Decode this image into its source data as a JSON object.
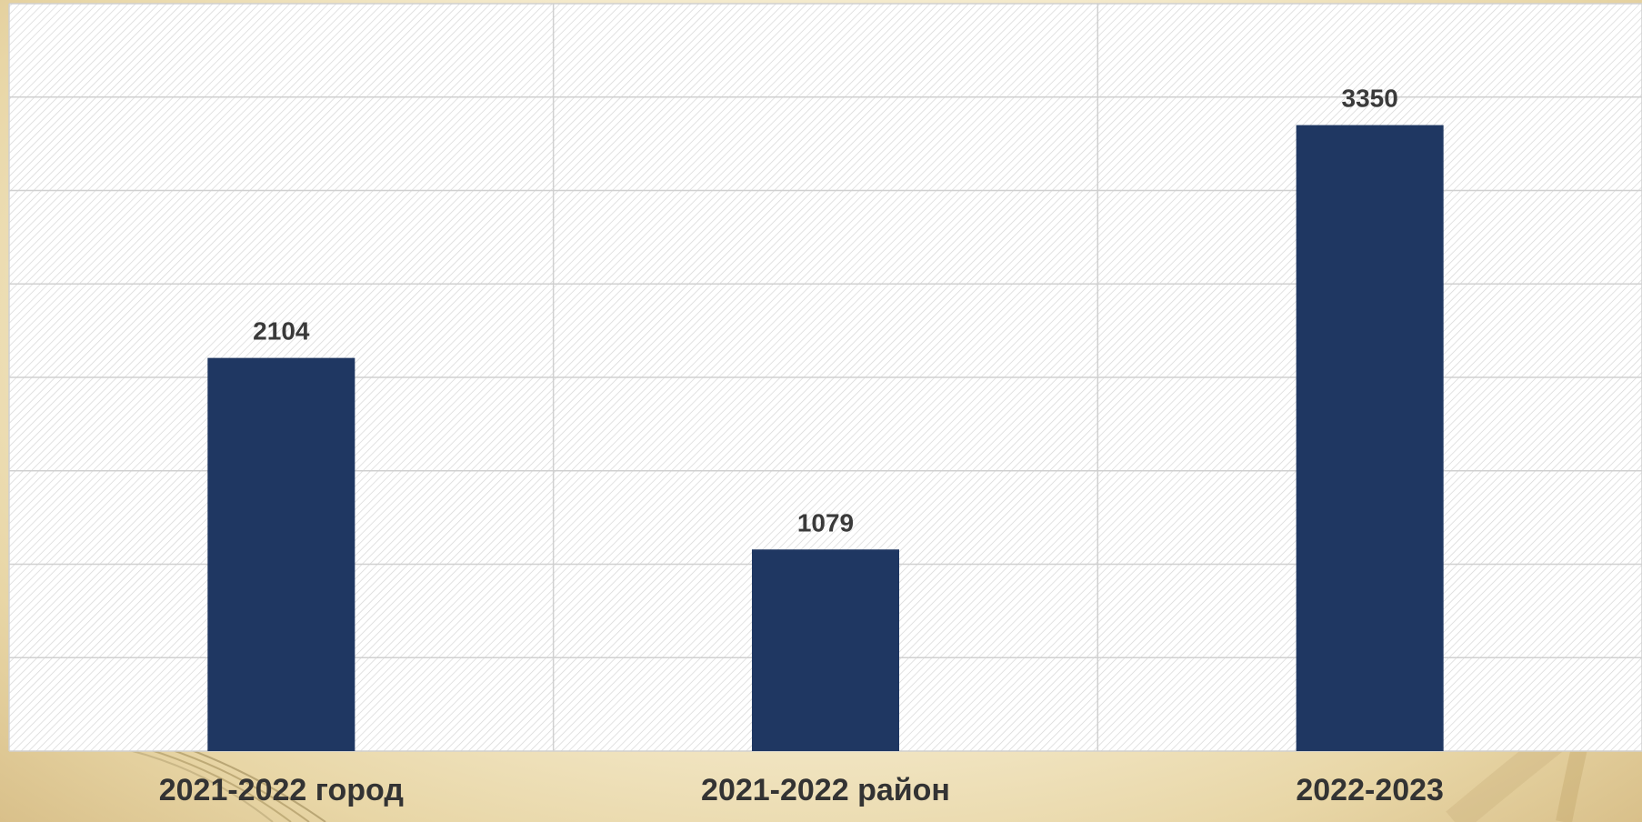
{
  "chart_data": {
    "type": "bar",
    "categories": [
      "2021-2022 город",
      "2021-2022 район",
      "2022-2023"
    ],
    "values": [
      2104,
      1079,
      3350
    ],
    "data_labels": [
      "2104",
      "1079",
      "3350"
    ],
    "title": "",
    "xlabel": "",
    "ylabel": "",
    "ylim": [
      0,
      4000
    ],
    "grid": true,
    "legend": "none"
  },
  "colors": {
    "bar": "#1f3762",
    "value_text": "#3a3a3a",
    "category_text": "#333333",
    "grid": "#d0d0d0",
    "plot_bg": "#ffffff",
    "hatch": "#d6d6d6"
  }
}
